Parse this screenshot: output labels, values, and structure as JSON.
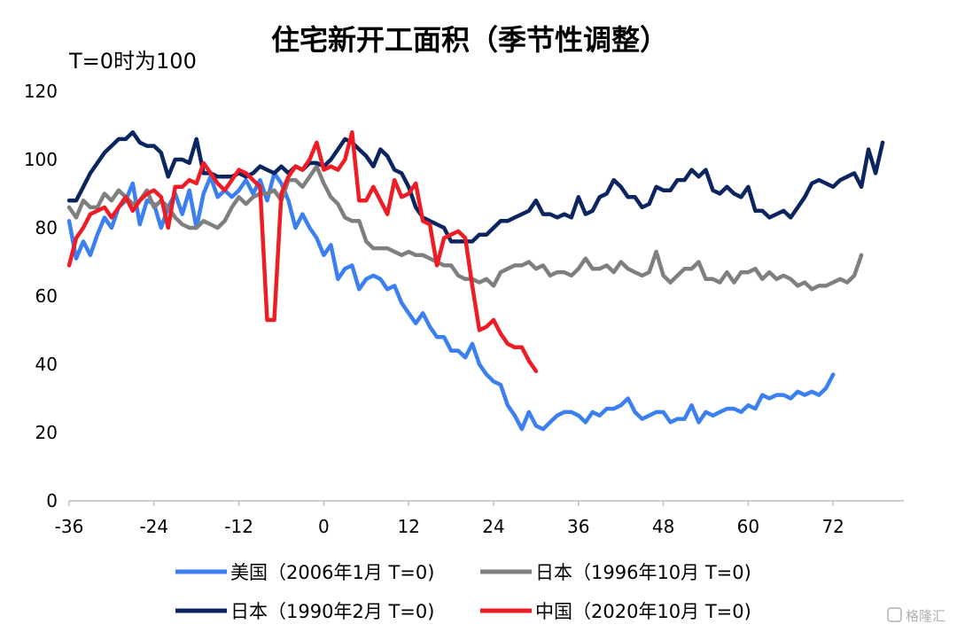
{
  "chart_data": {
    "type": "line",
    "title": "住宅新开工面积（季节性调整）",
    "unit_label": "T=0时为100",
    "xlim": [
      -36,
      82
    ],
    "ylim": [
      0,
      120
    ],
    "x_ticks": [
      "-36",
      "-24",
      "-12",
      "0",
      "12",
      "24",
      "36",
      "48",
      "60",
      "72"
    ],
    "y_ticks": [
      "0",
      "20",
      "40",
      "60",
      "80",
      "100",
      "120"
    ],
    "grid": false,
    "legend_position": "bottom",
    "series": [
      {
        "name": "美国（2006年1月 T=0)",
        "color": "#3c7ff0",
        "x_start": -36,
        "values": [
          82,
          71,
          76,
          72,
          78,
          83,
          80,
          86,
          88,
          93,
          81,
          88,
          87,
          80,
          86,
          90,
          84,
          91,
          80,
          90,
          95,
          89,
          91,
          89,
          91,
          94,
          90,
          94,
          88,
          96,
          93,
          88,
          80,
          84,
          80,
          77,
          72,
          75,
          65,
          68,
          69,
          62,
          65,
          66,
          65,
          62,
          63,
          58,
          55,
          52,
          55,
          51,
          48,
          48,
          44,
          44,
          42,
          46,
          40,
          37,
          35,
          34,
          28,
          25,
          21,
          26,
          22,
          21,
          23,
          25,
          26,
          26,
          25,
          23,
          26,
          25,
          27,
          27,
          28,
          30,
          26,
          24,
          25,
          26,
          26,
          23,
          24,
          24,
          28,
          23,
          26,
          25,
          26,
          27,
          27,
          26,
          28,
          27,
          31,
          30,
          31,
          31,
          30,
          32,
          31,
          32,
          31,
          33,
          37
        ]
      },
      {
        "name": "日本（1996年10月 T=0)",
        "color": "#7f7f7f",
        "x_start": -36,
        "values": [
          86,
          83,
          88,
          86,
          86,
          90,
          88,
          91,
          89,
          87,
          88,
          91,
          86,
          88,
          86,
          83,
          81,
          80,
          80,
          82,
          81,
          80,
          82,
          86,
          89,
          87,
          89,
          90,
          90,
          91,
          88,
          94,
          94,
          92,
          95,
          98,
          93,
          89,
          87,
          83,
          82,
          82,
          76,
          74,
          74,
          74,
          73,
          72,
          73,
          72,
          72,
          71,
          70,
          69,
          69,
          66,
          65,
          65,
          64,
          65,
          63,
          67,
          68,
          69,
          69,
          70,
          68,
          69,
          66,
          67,
          67,
          66,
          68,
          71,
          68,
          68,
          69,
          67,
          70,
          68,
          67,
          66,
          67,
          73,
          66,
          64,
          66,
          68,
          68,
          70,
          65,
          65,
          64,
          67,
          64,
          67,
          67,
          68,
          65,
          67,
          65,
          66,
          65,
          63,
          64,
          62,
          63,
          63,
          64,
          65,
          64,
          66,
          72
        ]
      },
      {
        "name": "日本（1990年2月 T=0)",
        "color": "#0b2560",
        "x_start": -36,
        "values": [
          88,
          88,
          92,
          96,
          99,
          102,
          104,
          106,
          106,
          108,
          105,
          104,
          104,
          102,
          95,
          100,
          100,
          99,
          106,
          96,
          96,
          95,
          95,
          95,
          96,
          95,
          96,
          98,
          97,
          96,
          98,
          96,
          98,
          97,
          99,
          99,
          98,
          100,
          103,
          106,
          105,
          103,
          101,
          98,
          103,
          101,
          97,
          96,
          92,
          86,
          83,
          82,
          81,
          80,
          76,
          76,
          76,
          76,
          78,
          78,
          80,
          82,
          82,
          83,
          84,
          85,
          88,
          84,
          84,
          83,
          84,
          83,
          89,
          84,
          85,
          89,
          90,
          94,
          92,
          89,
          89,
          86,
          87,
          92,
          91,
          91,
          94,
          94,
          97,
          95,
          97,
          91,
          90,
          92,
          90,
          89,
          92,
          85,
          85,
          83,
          84,
          85,
          83,
          86,
          89,
          93,
          94,
          93,
          92,
          94,
          95,
          96,
          92,
          103,
          96,
          105
        ]
      },
      {
        "name": "中国（2020年10月 T=0)",
        "color": "#ee1c25",
        "x_start": -36,
        "values": [
          69,
          77,
          80,
          84,
          85,
          86,
          83,
          86,
          89,
          85,
          88,
          90,
          91,
          89,
          80,
          92,
          92,
          94,
          93,
          99,
          96,
          93,
          91,
          94,
          97,
          96,
          94,
          92,
          53,
          53,
          90,
          95,
          98,
          97,
          100,
          105,
          97,
          98,
          97,
          100,
          108,
          88,
          88,
          92,
          88,
          84,
          94,
          89,
          90,
          93,
          82,
          81,
          69,
          77,
          78,
          79,
          77,
          63,
          50,
          51,
          53,
          49,
          46,
          45,
          45,
          41,
          38
        ]
      }
    ]
  },
  "watermark": "格隆汇"
}
